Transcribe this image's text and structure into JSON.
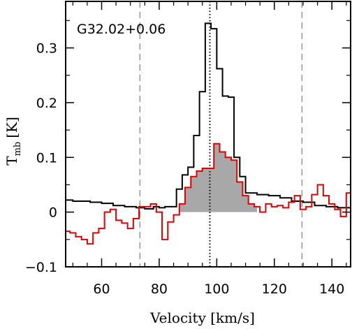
{
  "chart_data": {
    "type": "line",
    "title": "G32.02+0.06",
    "xlabel": "Velocity [km/s]",
    "ylabel": "T",
    "ylabel_sub": "mb",
    "ylabel_unit": "[K]",
    "xlim": [
      47.5,
      146.5
    ],
    "ylim": [
      -0.1,
      0.385
    ],
    "xticks": [
      60,
      80,
      100,
      120,
      140
    ],
    "yticks": [
      -0.1,
      0,
      0.1,
      0.2,
      0.3
    ],
    "xtick_labels": [
      "60",
      "80",
      "100",
      "120",
      "140"
    ],
    "ytick_labels": [
      "−0.1",
      "0",
      "0.1",
      "0.2",
      "0.3"
    ],
    "vlines": [
      {
        "x": 73.3,
        "style": "dashed",
        "color": "#888888"
      },
      {
        "x": 97.6,
        "style": "dotted",
        "color": "#000000"
      },
      {
        "x": 129.6,
        "style": "dashed",
        "color": "#888888"
      }
    ],
    "series": [
      {
        "color": "#000000",
        "step": true,
        "x": [
          47.5,
          50,
          56,
          60,
          64,
          68,
          72,
          75,
          78,
          80,
          82,
          84,
          86,
          88,
          90,
          92,
          94,
          96,
          98,
          100,
          102,
          104,
          106,
          108,
          110,
          114,
          118,
          122,
          126,
          130,
          134,
          138,
          142,
          146.5
        ],
        "y": [
          0.022,
          0.02,
          0.018,
          0.016,
          0.012,
          0.01,
          0.008,
          0.006,
          0.01,
          0.008,
          0.01,
          0.01,
          0.042,
          0.068,
          0.082,
          0.14,
          0.22,
          0.345,
          0.335,
          0.262,
          0.212,
          0.21,
          0.1,
          0.065,
          0.035,
          0.032,
          0.03,
          0.026,
          0.02,
          0.018,
          0.012,
          0.01,
          0.008,
          0.006
        ]
      },
      {
        "color": "#e00000",
        "step": true,
        "fill_range": [
          86,
          114
        ],
        "fill_color": "#a8a8a8",
        "x": [
          47.5,
          49,
          51,
          53,
          55,
          57,
          59,
          61,
          63,
          65,
          67,
          69,
          71,
          73,
          75,
          77,
          79,
          81,
          83,
          85,
          87,
          89,
          91,
          93,
          95,
          97,
          99,
          101,
          103,
          105,
          107,
          109,
          111,
          113,
          115,
          117,
          119,
          121,
          123,
          125,
          127,
          129,
          131,
          133,
          135,
          137,
          139,
          141,
          143,
          145,
          146.5
        ],
        "y": [
          -0.035,
          -0.038,
          -0.045,
          -0.05,
          -0.058,
          -0.038,
          -0.03,
          0.0,
          0.005,
          -0.015,
          -0.02,
          -0.03,
          -0.012,
          0.01,
          0.01,
          0.015,
          0.0,
          -0.05,
          -0.018,
          -0.005,
          0.015,
          0.045,
          0.065,
          0.075,
          0.08,
          0.08,
          0.125,
          0.11,
          0.1,
          0.095,
          0.055,
          0.03,
          0.015,
          0.01,
          0.0,
          0.015,
          0.01,
          0.012,
          0.008,
          0.018,
          0.03,
          0.005,
          0.01,
          0.032,
          0.05,
          0.03,
          0.015,
          0.005,
          -0.008,
          0.035,
          0.0
        ]
      }
    ]
  }
}
